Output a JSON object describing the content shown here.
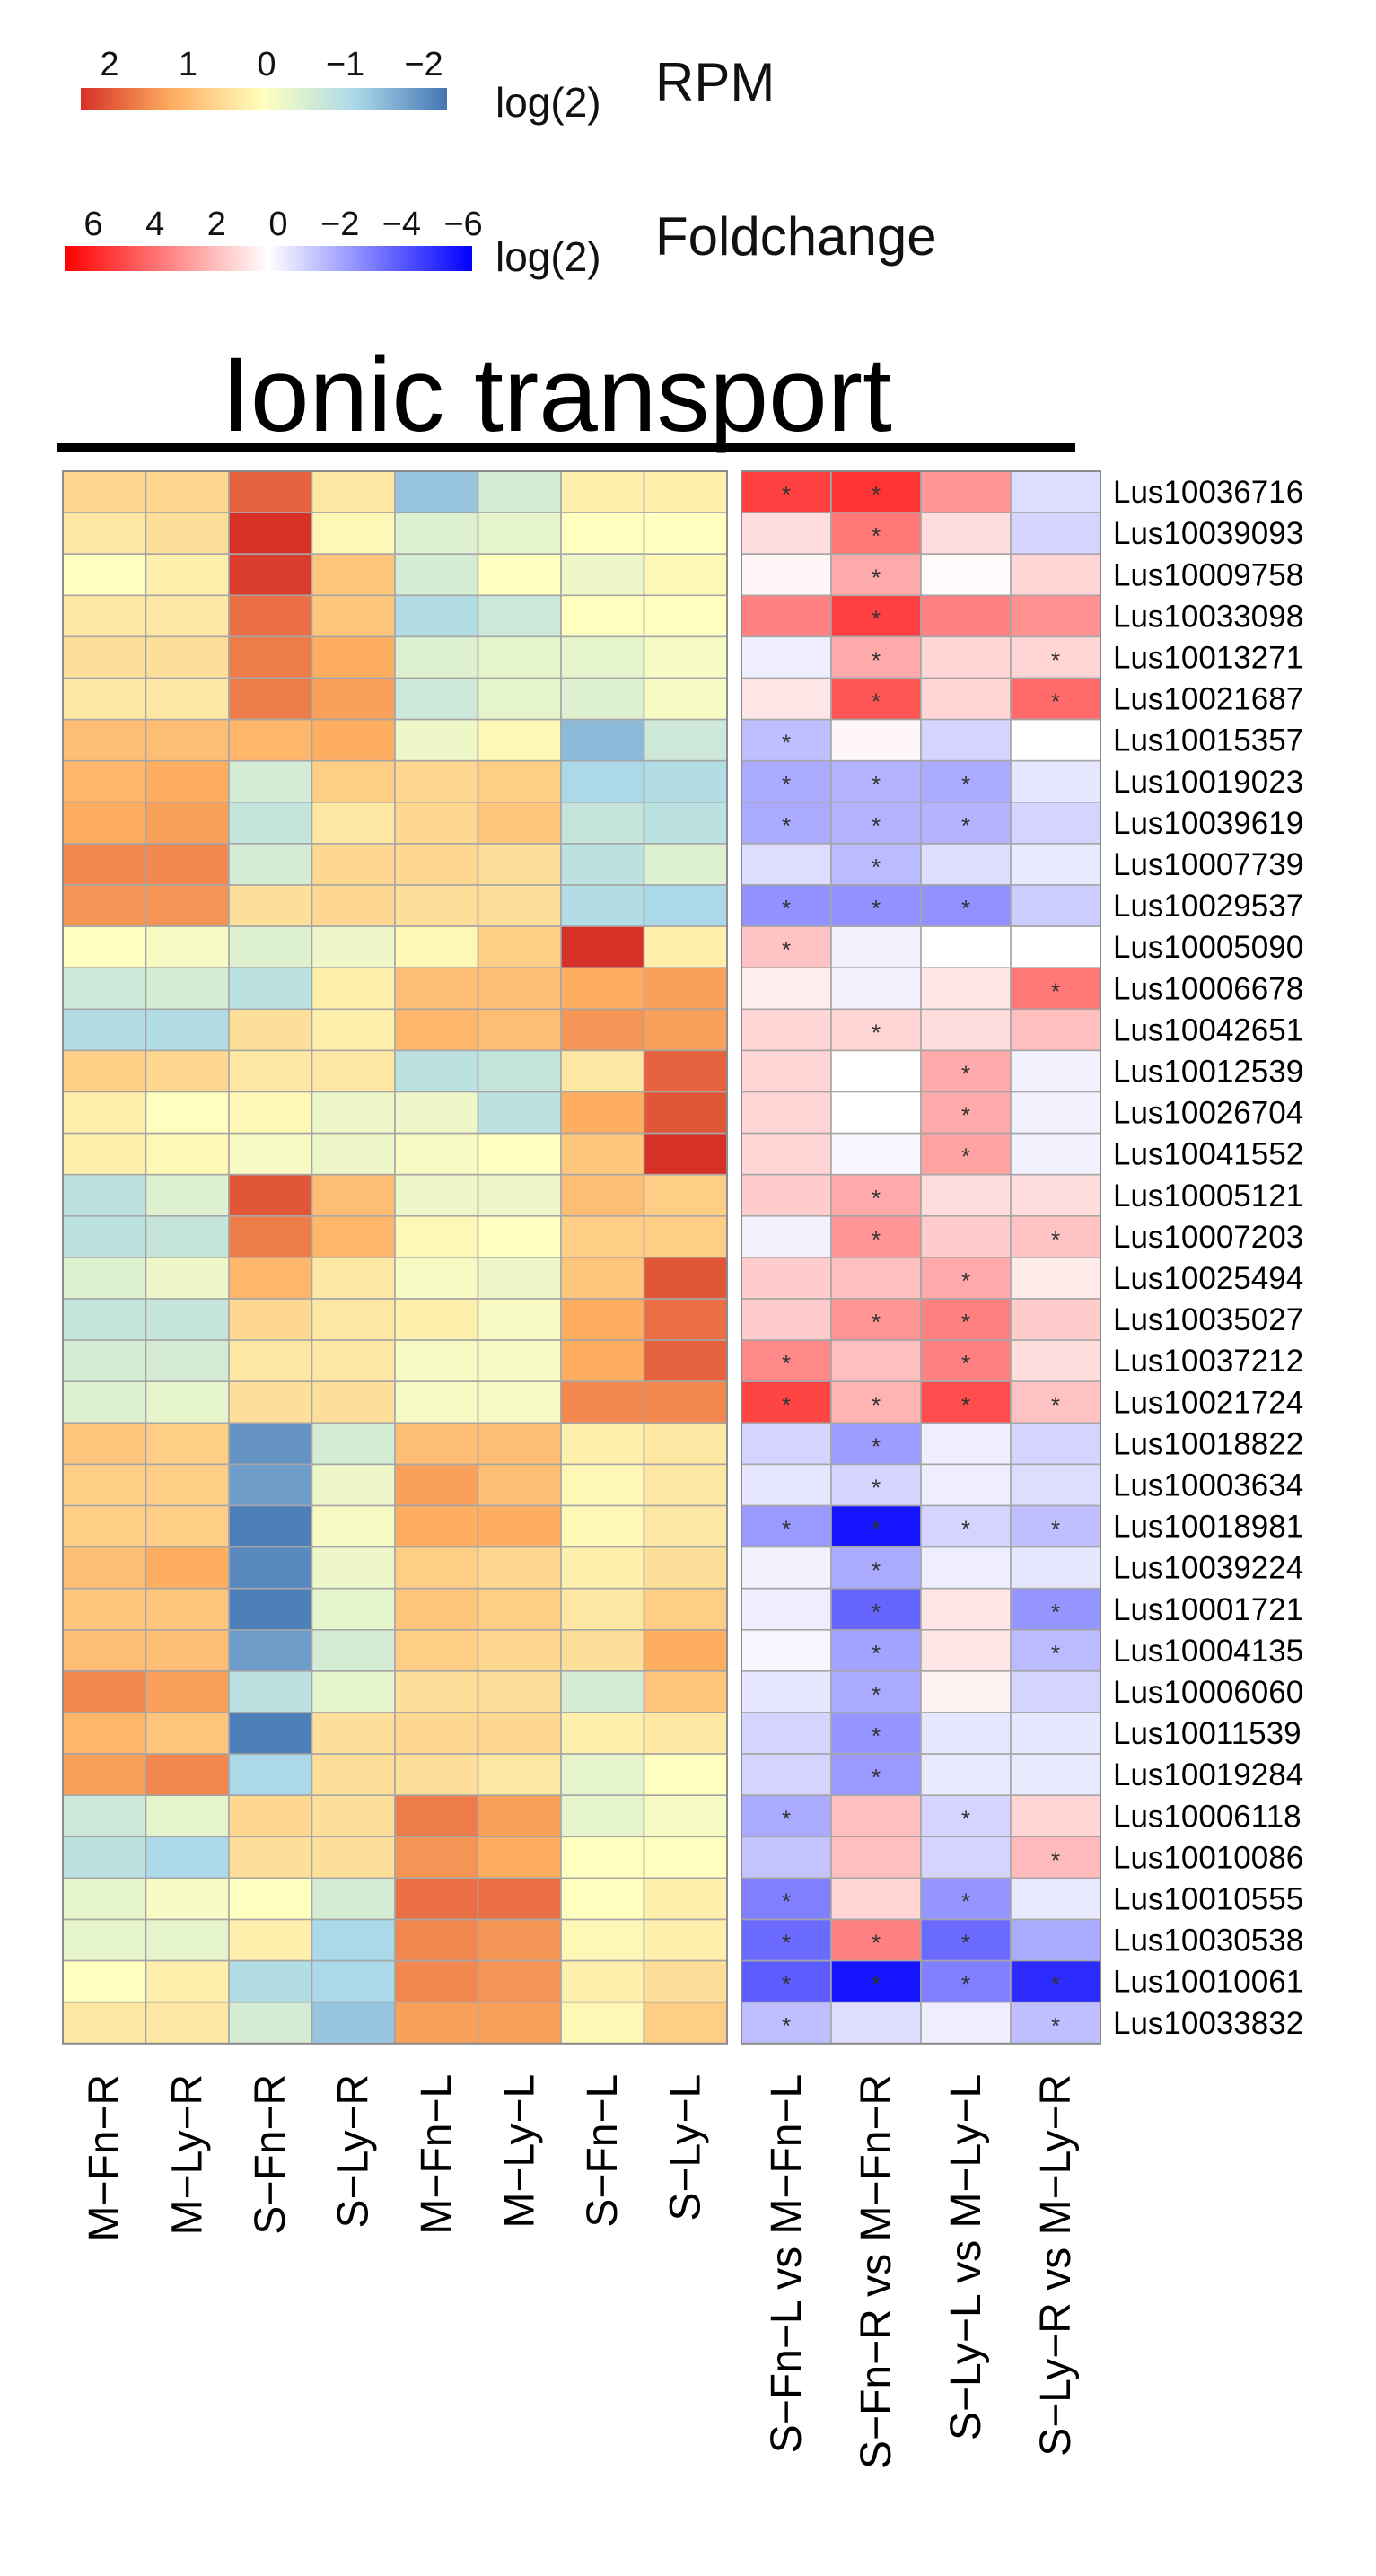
{
  "chart_data": {
    "type": "heatmap",
    "title": "Ionic transport",
    "legends": [
      {
        "name": "rpm",
        "prefix": "log(2)",
        "label": "RPM",
        "ticks": [
          "2",
          "1",
          "0",
          "−1",
          "−2"
        ],
        "colors": [
          "#d73027",
          "#fdae61",
          "#ffffbf",
          "#abd9e9",
          "#4575b4"
        ]
      },
      {
        "name": "foldchange",
        "prefix": "log(2)",
        "label": "Foldchange",
        "ticks": [
          "6",
          "4",
          "2",
          "0",
          "−2",
          "−4",
          "−6"
        ],
        "colors": [
          "#ff0000",
          "#ffffff",
          "#0000ff"
        ]
      }
    ],
    "rows": [
      "Lus10036716",
      "Lus10039093",
      "Lus10009758",
      "Lus10033098",
      "Lus10013271",
      "Lus10021687",
      "Lus10015357",
      "Lus10019023",
      "Lus10039619",
      "Lus10007739",
      "Lus10029537",
      "Lus10005090",
      "Lus10006678",
      "Lus10042651",
      "Lus10012539",
      "Lus10026704",
      "Lus10041552",
      "Lus10005121",
      "Lus10007203",
      "Lus10025494",
      "Lus10035027",
      "Lus10037212",
      "Lus10021724",
      "Lus10018822",
      "Lus10003634",
      "Lus10018981",
      "Lus10039224",
      "Lus10001721",
      "Lus10004135",
      "Lus10006060",
      "Lus10011539",
      "Lus10019284",
      "Lus10006118",
      "Lus10010086",
      "Lus10010555",
      "Lus10030538",
      "Lus10010061",
      "Lus10033832"
    ],
    "rpm_columns": [
      "M−Fn−R",
      "M−Ly−R",
      "S−Fn−R",
      "S−Ly−R",
      "M−Fn−L",
      "M−Ly−L",
      "S−Fn−L",
      "S−Ly−L"
    ],
    "rpm_values": [
      [
        0.5,
        0.5,
        1.6,
        0.3,
        -1.2,
        -0.5,
        0.2,
        0.2
      ],
      [
        0.3,
        0.4,
        2.2,
        0.1,
        -0.4,
        -0.3,
        0.0,
        0.0
      ],
      [
        0.0,
        0.2,
        1.9,
        0.7,
        -0.5,
        0.0,
        -0.2,
        0.1
      ],
      [
        0.3,
        0.3,
        1.5,
        0.7,
        -0.9,
        -0.6,
        0.0,
        0.0
      ],
      [
        0.4,
        0.4,
        1.4,
        1.0,
        -0.4,
        -0.3,
        -0.3,
        -0.1
      ],
      [
        0.3,
        0.3,
        1.4,
        1.1,
        -0.6,
        -0.3,
        -0.4,
        -0.1
      ],
      [
        0.8,
        0.8,
        0.9,
        1.0,
        -0.2,
        0.1,
        -1.3,
        -0.6
      ],
      [
        0.9,
        1.0,
        -0.5,
        0.6,
        0.5,
        0.6,
        -1.0,
        -0.9
      ],
      [
        1.0,
        1.1,
        -0.7,
        0.3,
        0.5,
        0.7,
        -0.7,
        -0.8
      ],
      [
        1.3,
        1.3,
        -0.5,
        0.5,
        0.5,
        0.4,
        -0.8,
        -0.4
      ],
      [
        1.2,
        1.2,
        0.4,
        0.5,
        0.4,
        0.4,
        -0.9,
        -1.0
      ],
      [
        0.0,
        -0.1,
        -0.4,
        -0.2,
        0.1,
        0.6,
        2.2,
        0.2
      ],
      [
        -0.6,
        -0.5,
        -0.8,
        0.2,
        0.8,
        0.8,
        1.0,
        1.1
      ],
      [
        -0.9,
        -0.9,
        0.4,
        0.2,
        0.9,
        0.8,
        1.2,
        1.1
      ],
      [
        0.6,
        0.5,
        0.3,
        0.3,
        -0.8,
        -0.7,
        0.3,
        1.6
      ],
      [
        0.2,
        0.0,
        0.1,
        -0.2,
        -0.2,
        -0.8,
        1.0,
        1.7
      ],
      [
        0.2,
        0.1,
        -0.1,
        -0.2,
        -0.1,
        0.0,
        0.7,
        2.2
      ],
      [
        -0.8,
        -0.4,
        1.7,
        0.8,
        -0.2,
        -0.2,
        0.8,
        0.6
      ],
      [
        -0.8,
        -0.7,
        1.4,
        0.9,
        0.1,
        0.0,
        0.6,
        0.6
      ],
      [
        -0.4,
        -0.2,
        0.9,
        0.3,
        -0.1,
        -0.2,
        0.7,
        1.7
      ],
      [
        -0.7,
        -0.7,
        0.5,
        0.3,
        0.2,
        -0.1,
        1.0,
        1.5
      ],
      [
        -0.5,
        -0.5,
        0.3,
        0.3,
        -0.1,
        -0.1,
        1.0,
        1.6
      ],
      [
        -0.4,
        -0.3,
        0.4,
        0.4,
        -0.1,
        -0.1,
        1.3,
        1.3
      ],
      [
        0.7,
        0.6,
        -1.7,
        -0.5,
        0.8,
        0.8,
        0.2,
        0.3
      ],
      [
        0.6,
        0.6,
        -1.6,
        -0.2,
        1.1,
        0.8,
        0.1,
        0.3
      ],
      [
        0.6,
        0.6,
        -1.9,
        -0.1,
        1.0,
        1.0,
        0.1,
        0.3
      ],
      [
        0.8,
        1.0,
        -1.8,
        -0.2,
        0.6,
        0.5,
        0.2,
        0.4
      ],
      [
        0.7,
        0.7,
        -1.9,
        -0.3,
        0.7,
        0.6,
        0.3,
        0.6
      ],
      [
        0.8,
        0.8,
        -1.6,
        -0.5,
        0.6,
        0.5,
        0.4,
        1.0
      ],
      [
        1.3,
        1.1,
        -0.8,
        -0.3,
        0.4,
        0.4,
        -0.5,
        0.7
      ],
      [
        0.9,
        0.7,
        -1.9,
        0.4,
        0.5,
        0.5,
        0.2,
        0.3
      ],
      [
        1.1,
        1.3,
        -1.0,
        0.4,
        0.4,
        0.3,
        -0.3,
        0.0
      ],
      [
        -0.6,
        -0.3,
        0.5,
        0.4,
        1.4,
        1.1,
        -0.3,
        -0.1
      ],
      [
        -0.8,
        -1.0,
        0.4,
        0.4,
        1.2,
        1.0,
        0.0,
        0.0
      ],
      [
        -0.3,
        -0.1,
        0.0,
        -0.5,
        1.5,
        1.5,
        0.0,
        0.2
      ],
      [
        -0.3,
        -0.3,
        0.2,
        -1.0,
        1.3,
        1.2,
        0.1,
        0.2
      ],
      [
        0.0,
        0.2,
        -0.9,
        -1.0,
        1.3,
        1.2,
        0.2,
        0.4
      ],
      [
        0.3,
        0.3,
        -0.5,
        -1.2,
        1.1,
        1.1,
        0.1,
        0.6
      ]
    ],
    "fc_columns": [
      "S−Fn−L vs M−Fn−L",
      "S−Fn−R vs M−Fn−R",
      "S−Ly−L vs M−Ly−L",
      "S−Ly−R vs M−Ly−R"
    ],
    "fc_values": [
      [
        4.5,
        4.8,
        2.5,
        -0.8
      ],
      [
        0.8,
        3.2,
        0.8,
        -1.0
      ],
      [
        0.2,
        2.0,
        0.1,
        1.0
      ],
      [
        3.0,
        4.5,
        3.0,
        2.6
      ],
      [
        -0.4,
        2.0,
        1.0,
        1.0
      ],
      [
        0.6,
        4.0,
        1.0,
        3.5
      ],
      [
        -1.5,
        0.2,
        -1.0,
        0.0
      ],
      [
        -2.0,
        -1.8,
        -2.0,
        -0.6
      ],
      [
        -2.0,
        -1.8,
        -1.8,
        -1.0
      ],
      [
        -0.8,
        -1.6,
        -0.8,
        -0.5
      ],
      [
        -2.6,
        -2.6,
        -2.6,
        -1.2
      ],
      [
        1.4,
        -0.3,
        0.0,
        0.0
      ],
      [
        0.4,
        -0.3,
        0.6,
        3.2
      ],
      [
        1.0,
        1.0,
        0.8,
        1.5
      ],
      [
        1.0,
        0.0,
        2.0,
        -0.3
      ],
      [
        1.0,
        0.0,
        2.0,
        -0.3
      ],
      [
        1.0,
        -0.2,
        2.2,
        -0.3
      ],
      [
        1.2,
        2.0,
        0.8,
        0.8
      ],
      [
        -0.3,
        2.5,
        1.2,
        1.4
      ],
      [
        1.2,
        1.5,
        2.0,
        0.5
      ],
      [
        1.2,
        2.5,
        3.0,
        1.2
      ],
      [
        2.8,
        1.5,
        3.0,
        0.8
      ],
      [
        4.4,
        1.8,
        4.2,
        1.4
      ],
      [
        -1.0,
        -2.3,
        -0.4,
        -1.0
      ],
      [
        -0.6,
        -1.0,
        -0.4,
        -0.8
      ],
      [
        -2.4,
        -5.5,
        -1.0,
        -1.5
      ],
      [
        -0.3,
        -2.0,
        -0.4,
        -0.6
      ],
      [
        -0.4,
        -3.6,
        0.6,
        -2.5
      ],
      [
        -0.2,
        -2.2,
        0.6,
        -1.6
      ],
      [
        -0.6,
        -2.0,
        0.3,
        -1.0
      ],
      [
        -1.0,
        -2.5,
        -0.6,
        -0.6
      ],
      [
        -1.0,
        -2.4,
        -0.5,
        -0.5
      ],
      [
        -2.0,
        1.5,
        -1.0,
        1.0
      ],
      [
        -1.4,
        1.5,
        -1.0,
        1.6
      ],
      [
        -3.0,
        1.0,
        -2.5,
        -0.5
      ],
      [
        -3.5,
        3.0,
        -3.5,
        -2.0
      ],
      [
        -3.8,
        -5.5,
        -3.0,
        -5.0
      ],
      [
        -1.5,
        -0.8,
        -0.4,
        -1.5
      ]
    ],
    "significant": [
      [
        1,
        1,
        0,
        0
      ],
      [
        0,
        1,
        0,
        0
      ],
      [
        0,
        1,
        0,
        0
      ],
      [
        0,
        1,
        0,
        0
      ],
      [
        0,
        1,
        0,
        1
      ],
      [
        0,
        1,
        0,
        1
      ],
      [
        1,
        0,
        0,
        0
      ],
      [
        1,
        1,
        1,
        0
      ],
      [
        1,
        1,
        1,
        0
      ],
      [
        0,
        1,
        0,
        0
      ],
      [
        1,
        1,
        1,
        0
      ],
      [
        1,
        0,
        0,
        0
      ],
      [
        0,
        0,
        0,
        1
      ],
      [
        0,
        1,
        0,
        0
      ],
      [
        0,
        0,
        1,
        0
      ],
      [
        0,
        0,
        1,
        0
      ],
      [
        0,
        0,
        1,
        0
      ],
      [
        0,
        1,
        0,
        0
      ],
      [
        0,
        1,
        0,
        1
      ],
      [
        0,
        0,
        1,
        0
      ],
      [
        0,
        1,
        1,
        0
      ],
      [
        1,
        0,
        1,
        0
      ],
      [
        1,
        1,
        1,
        1
      ],
      [
        0,
        1,
        0,
        0
      ],
      [
        0,
        1,
        0,
        0
      ],
      [
        1,
        1,
        1,
        1
      ],
      [
        0,
        1,
        0,
        0
      ],
      [
        0,
        1,
        0,
        1
      ],
      [
        0,
        1,
        0,
        1
      ],
      [
        0,
        1,
        0,
        0
      ],
      [
        0,
        1,
        0,
        0
      ],
      [
        0,
        1,
        0,
        0
      ],
      [
        1,
        0,
        1,
        0
      ],
      [
        0,
        0,
        0,
        1
      ],
      [
        1,
        0,
        1,
        0
      ],
      [
        1,
        1,
        1,
        0
      ],
      [
        1,
        1,
        1,
        1
      ],
      [
        1,
        0,
        0,
        1
      ]
    ],
    "significance_marker": "*",
    "rpm_range": [
      -2,
      2
    ],
    "fc_range": [
      -6,
      6
    ]
  }
}
